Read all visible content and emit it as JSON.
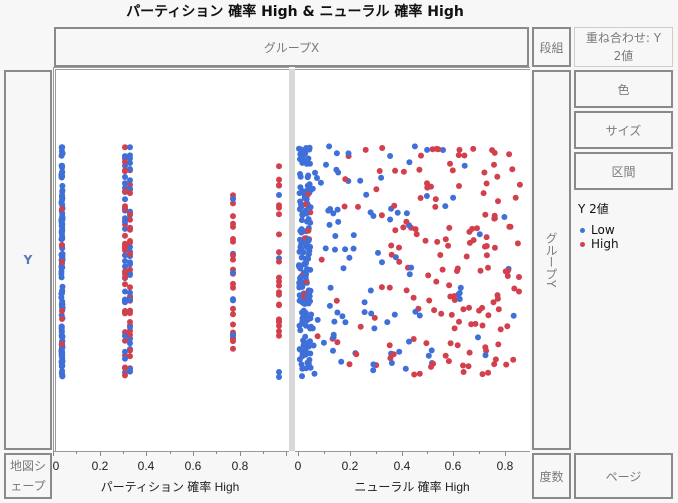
{
  "title": "パーティション 確率 High & ニューラル 確率 High",
  "zones": {
    "group_x": "グループX",
    "wrap": "段組",
    "overlay": "重ね合わせ: Y 2値",
    "color": "色",
    "size": "サイズ",
    "interval": "区間",
    "y": "Y",
    "group_y": "グループY",
    "map_shape": "地図シェープ",
    "freq": "度数",
    "page": "ページ"
  },
  "legend": {
    "title": "Y 2値",
    "items": [
      {
        "label": "Low",
        "color": "#3f6fd8"
      },
      {
        "label": "High",
        "color": "#d3404d"
      }
    ]
  },
  "axes": {
    "left": {
      "title": "パーティション 確率 High",
      "ticks": [
        "0",
        "0.2",
        "0.4",
        "0.6",
        "0.8"
      ]
    },
    "right": {
      "title": "ニューラル 確率 High",
      "ticks": [
        "0",
        "0.2",
        "0.4",
        "0.6",
        "0.8"
      ]
    }
  },
  "colors": {
    "low": "#3f6fd8",
    "high": "#d3404d"
  }
}
